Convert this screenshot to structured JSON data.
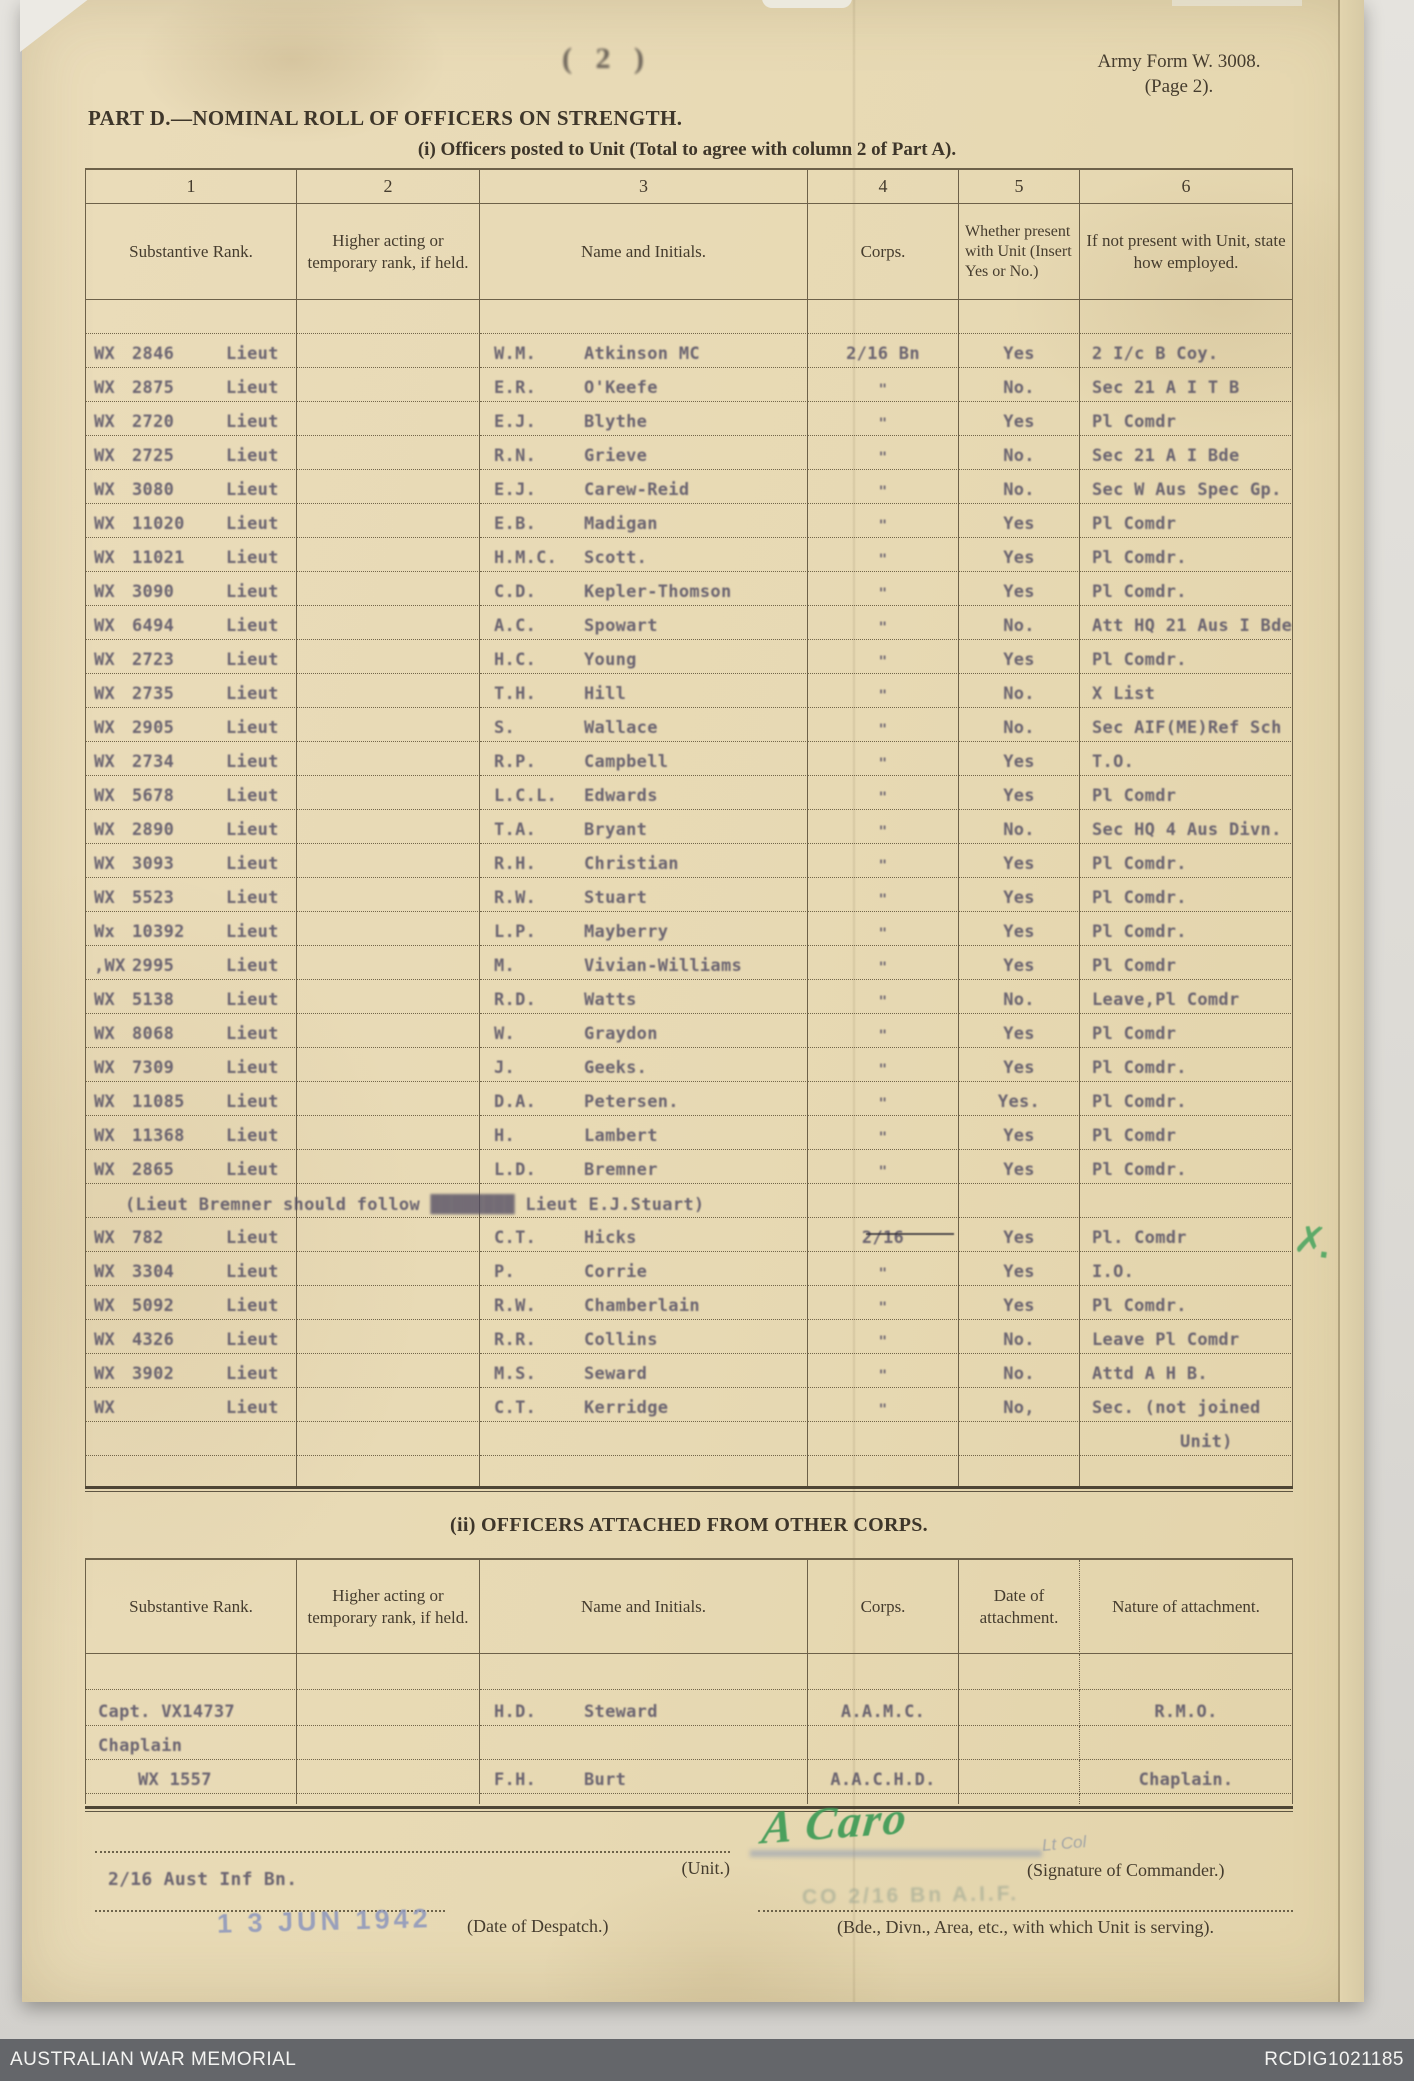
{
  "form": {
    "number": "Army Form W. 3008.",
    "page_label": "(Page 2).",
    "page_annotation": "( 2 )"
  },
  "part_d": {
    "title": "PART D.—NOMINAL ROLL OF OFFICERS ON STRENGTH.",
    "subtitle": "(i) Officers posted to Unit (Total to agree with column 2 of Part A)."
  },
  "roll_table": {
    "column_numbers": [
      "1",
      "2",
      "3",
      "4",
      "5",
      "6"
    ],
    "headers": [
      "Substantive Rank.",
      "Higher acting or temporary rank, if held.",
      "Name and Initials.",
      "Corps.",
      "Whether present with Unit (Insert Yes or No.)",
      "If not present with Unit, state how employed."
    ],
    "rows": [
      {
        "prefix": "WX",
        "number": "2846",
        "rank": "Lieut",
        "initials": "W.M.",
        "surname": "Atkinson MC",
        "corps": "2/16 Bn",
        "present": "Yes",
        "employed": "2 I/c B Coy."
      },
      {
        "prefix": "WX",
        "number": "2875",
        "rank": "Lieut",
        "initials": "E.R.",
        "surname": "O'Keefe",
        "corps": "\"",
        "present": "No.",
        "employed": "Sec 21 A I T B"
      },
      {
        "prefix": "WX",
        "number": "2720",
        "rank": "Lieut",
        "initials": "E.J.",
        "surname": "Blythe",
        "corps": "\"",
        "present": "Yes",
        "employed": "Pl Comdr"
      },
      {
        "prefix": "WX",
        "number": "2725",
        "rank": "Lieut",
        "initials": "R.N.",
        "surname": "Grieve",
        "corps": "\"",
        "present": "No.",
        "employed": "Sec 21 A I Bde"
      },
      {
        "prefix": "WX",
        "number": "3080",
        "rank": "Lieut",
        "initials": "E.J.",
        "surname": "Carew-Reid",
        "corps": "\"",
        "present": "No.",
        "employed": "Sec W Aus Spec Gp."
      },
      {
        "prefix": "WX",
        "number": "11020",
        "rank": "Lieut",
        "initials": "E.B.",
        "surname": "Madigan",
        "corps": "\"",
        "present": "Yes",
        "employed": "Pl Comdr"
      },
      {
        "prefix": "WX",
        "number": "11021",
        "rank": "Lieut",
        "initials": "H.M.C.",
        "surname": "Scott.",
        "corps": "\"",
        "present": "Yes",
        "employed": "Pl Comdr."
      },
      {
        "prefix": "WX",
        "number": "3090",
        "rank": "Lieut",
        "initials": "C.D.",
        "surname": "Kepler-Thomson",
        "corps": "\"",
        "present": "Yes",
        "employed": "Pl Comdr."
      },
      {
        "prefix": "WX",
        "number": "6494",
        "rank": "Lieut",
        "initials": "A.C.",
        "surname": "Spowart",
        "corps": "\"",
        "present": "No.",
        "employed": "Att HQ 21 Aus I Bde"
      },
      {
        "prefix": "WX",
        "number": "2723",
        "rank": "Lieut",
        "initials": "H.C.",
        "surname": "Young",
        "corps": "\"",
        "present": "Yes",
        "employed": "Pl Comdr."
      },
      {
        "prefix": "WX",
        "number": "2735",
        "rank": "Lieut",
        "initials": "T.H.",
        "surname": "Hill",
        "corps": "\"",
        "present": "No.",
        "employed": "X List"
      },
      {
        "prefix": "WX",
        "number": "2905",
        "rank": "Lieut",
        "initials": "S.",
        "surname": "Wallace",
        "corps": "\"",
        "present": "No.",
        "employed": "Sec AIF(ME)Ref Sch"
      },
      {
        "prefix": "WX",
        "number": "2734",
        "rank": "Lieut",
        "initials": "R.P.",
        "surname": "Campbell",
        "corps": "\"",
        "present": "Yes",
        "employed": "T.O."
      },
      {
        "prefix": "WX",
        "number": "5678",
        "rank": "Lieut",
        "initials": "L.C.L.",
        "surname": "Edwards",
        "corps": "\"",
        "present": "Yes",
        "employed": "Pl Comdr"
      },
      {
        "prefix": "WX",
        "number": "2890",
        "rank": "Lieut",
        "initials": "T.A.",
        "surname": "Bryant",
        "corps": "\"",
        "present": "No.",
        "employed": "Sec HQ 4 Aus Divn."
      },
      {
        "prefix": "WX",
        "number": "3093",
        "rank": "Lieut",
        "initials": "R.H.",
        "surname": "Christian",
        "corps": "\"",
        "present": "Yes",
        "employed": "Pl Comdr."
      },
      {
        "prefix": "WX",
        "number": "5523",
        "rank": "Lieut",
        "initials": "R.W.",
        "surname": "Stuart",
        "corps": "\"",
        "present": "Yes",
        "employed": "Pl Comdr."
      },
      {
        "prefix": "Wx",
        "number": "10392",
        "rank": "Lieut",
        "initials": "L.P.",
        "surname": "Mayberry",
        "corps": "\"",
        "present": "Yes",
        "employed": "Pl Comdr."
      },
      {
        "prefix": ",WX",
        "number": "2995",
        "rank": "Lieut",
        "initials": "M.",
        "surname": "Vivian-Williams",
        "corps": "\"",
        "present": "Yes",
        "employed": "Pl Comdr"
      },
      {
        "prefix": "WX",
        "number": "5138",
        "rank": "Lieut",
        "initials": "R.D.",
        "surname": "Watts",
        "corps": "\"",
        "present": "No.",
        "employed": "Leave,Pl Comdr"
      },
      {
        "prefix": "WX",
        "number": "8068",
        "rank": "Lieut",
        "initials": "W.",
        "surname": "Graydon",
        "corps": "\"",
        "present": "Yes",
        "employed": "Pl Comdr"
      },
      {
        "prefix": "WX",
        "number": "7309",
        "rank": "Lieut",
        "initials": "J.",
        "surname": "Geeks.",
        "corps": "\"",
        "present": "Yes",
        "employed": "Pl Comdr."
      },
      {
        "prefix": "WX",
        "number": "11085",
        "rank": "Lieut",
        "initials": "D.A.",
        "surname": "Petersen.",
        "corps": "\"",
        "present": "Yes.",
        "employed": "Pl Comdr."
      },
      {
        "prefix": "WX",
        "number": "11368",
        "rank": "Lieut",
        "initials": "H.",
        "surname": "Lambert",
        "corps": "\"",
        "present": "Yes",
        "employed": "Pl Comdr"
      },
      {
        "prefix": "WX",
        "number": "2865",
        "rank": "Lieut",
        "initials": "L.D.",
        "surname": "Bremner",
        "corps": "\"",
        "present": "Yes",
        "employed": "Pl Comdr."
      }
    ],
    "note": {
      "before": "(Lieut Bremner should follow ",
      "struck": "████████",
      "after": " Lieut E.J.Stuart)"
    },
    "rows_after_note": [
      {
        "prefix": "WX",
        "number": "782",
        "rank": "Lieut",
        "initials": "C.T.",
        "surname": "Hicks",
        "corps": "2/16",
        "present": "Yes",
        "employed": "Pl. Comdr",
        "pen_line": true
      },
      {
        "prefix": "WX",
        "number": "3304",
        "rank": "Lieut",
        "initials": "P.",
        "surname": "Corrie",
        "corps": "\"",
        "present": "Yes",
        "employed": "I.O."
      },
      {
        "prefix": "WX",
        "number": "5092",
        "rank": "Lieut",
        "initials": "R.W.",
        "surname": "Chamberlain",
        "corps": "\"",
        "present": "Yes",
        "employed": "Pl Comdr."
      },
      {
        "prefix": "WX",
        "number": "4326",
        "rank": "Lieut",
        "initials": "R.R.",
        "surname": "Collins",
        "corps": "\"",
        "present": "No.",
        "employed": "Leave Pl Comdr"
      },
      {
        "prefix": "WX",
        "number": "3902",
        "rank": "Lieut",
        "initials": "M.S.",
        "surname": "Seward",
        "corps": "\"",
        "present": "No.",
        "employed": "Attd A H B."
      },
      {
        "prefix": "WX",
        "number": "",
        "rank": "Lieut",
        "initials": "C.T.",
        "surname": "Kerridge",
        "corps": "\"",
        "present": "No,",
        "employed": "Sec. (not joined"
      }
    ],
    "overflow_text": "Unit)"
  },
  "attached_table": {
    "heading": "(ii) OFFICERS ATTACHED FROM OTHER CORPS.",
    "headers": [
      "Substantive Rank.",
      "Higher acting or temporary rank, if held.",
      "Name and Initials.",
      "Corps.",
      "Date of attachment.",
      "Nature of attachment."
    ],
    "rows": [
      {
        "rank": "Capt. VX14737",
        "indent": false,
        "initials": "H.D.",
        "surname": "Steward",
        "corps": "A.A.M.C.",
        "date": "",
        "nature": "R.M.O."
      },
      {
        "rank": "Chaplain",
        "indent": false,
        "initials": "",
        "surname": "",
        "corps": "",
        "date": "",
        "nature": ""
      },
      {
        "rank": "WX 1557",
        "indent": true,
        "initials": "F.H.",
        "surname": "Burt",
        "corps": "A.A.C.H.D.",
        "date": "",
        "nature": "Chaplain."
      }
    ]
  },
  "signature_block": {
    "unit_value": "2/16 Aust Inf Bn.",
    "unit_label": "(Unit.)",
    "date_stamp": "1 3 JUN 1942",
    "despatch_label": "(Date of Despatch.)",
    "signature": "A Caro",
    "signature_rank": "Lt Col",
    "commander_stamp": "CO 2/16 Bn A.I.F.",
    "signature_label": "(Signature of Commander.)",
    "serving_label": "(Bde., Divn., Area, etc., with which Unit is serving)."
  },
  "marks": {
    "green_x": "✗"
  },
  "bottom_bar": {
    "left": "AUSTRALIAN WAR MEMORIAL",
    "right": "RCDIG1021185"
  }
}
